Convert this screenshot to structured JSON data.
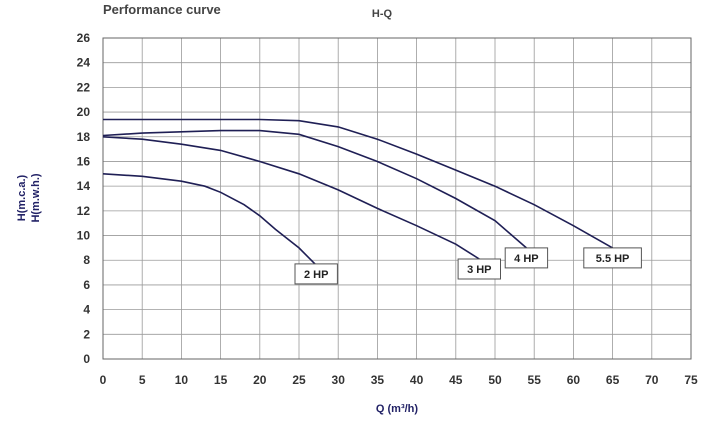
{
  "chart_data": {
    "type": "line",
    "title": "Performance curve",
    "subtitle": "H-Q",
    "xlabel": "Q (m³/h)",
    "ylabel": [
      "H(m.c.a.)",
      "H(m.w.h.)"
    ],
    "xlim": [
      0,
      75
    ],
    "ylim": [
      0,
      26
    ],
    "xticks": [
      0,
      5,
      10,
      15,
      20,
      25,
      30,
      35,
      40,
      45,
      50,
      55,
      60,
      65,
      70,
      75
    ],
    "yticks": [
      0,
      2,
      4,
      6,
      8,
      10,
      12,
      14,
      16,
      18,
      20,
      22,
      24,
      26
    ],
    "grid": true,
    "series": [
      {
        "name": "2 HP",
        "label_at": [
          27.2,
          7.7
        ],
        "points": [
          [
            0,
            15.0
          ],
          [
            5,
            14.8
          ],
          [
            10,
            14.4
          ],
          [
            13,
            14.0
          ],
          [
            15,
            13.5
          ],
          [
            18,
            12.5
          ],
          [
            20,
            11.6
          ],
          [
            22,
            10.5
          ],
          [
            25,
            9.0
          ],
          [
            27.2,
            7.6
          ]
        ]
      },
      {
        "name": "3 HP",
        "label_at": [
          48,
          8.1
        ],
        "points": [
          [
            0,
            18.0
          ],
          [
            5,
            17.8
          ],
          [
            10,
            17.4
          ],
          [
            15,
            16.9
          ],
          [
            20,
            16.0
          ],
          [
            25,
            15.0
          ],
          [
            30,
            13.7
          ],
          [
            35,
            12.2
          ],
          [
            40,
            10.8
          ],
          [
            45,
            9.3
          ],
          [
            48,
            8.1
          ]
        ]
      },
      {
        "name": "4 HP",
        "label_at": [
          54,
          9.0
        ],
        "points": [
          [
            0,
            18.1
          ],
          [
            5,
            18.3
          ],
          [
            10,
            18.4
          ],
          [
            15,
            18.5
          ],
          [
            20,
            18.5
          ],
          [
            25,
            18.2
          ],
          [
            30,
            17.2
          ],
          [
            35,
            16.0
          ],
          [
            40,
            14.6
          ],
          [
            45,
            13.0
          ],
          [
            50,
            11.2
          ],
          [
            54,
            9.0
          ]
        ]
      },
      {
        "name": "5.5 HP",
        "label_at": [
          65,
          9.0
        ],
        "points": [
          [
            0,
            19.4
          ],
          [
            5,
            19.4
          ],
          [
            10,
            19.4
          ],
          [
            15,
            19.4
          ],
          [
            20,
            19.4
          ],
          [
            25,
            19.3
          ],
          [
            30,
            18.8
          ],
          [
            35,
            17.8
          ],
          [
            40,
            16.6
          ],
          [
            45,
            15.3
          ],
          [
            50,
            14.0
          ],
          [
            55,
            12.5
          ],
          [
            60,
            10.8
          ],
          [
            65,
            9.0
          ]
        ]
      }
    ]
  },
  "colors": {
    "curve": "#1f1f55",
    "grid": "#9a9a9a",
    "text": "#333333"
  }
}
